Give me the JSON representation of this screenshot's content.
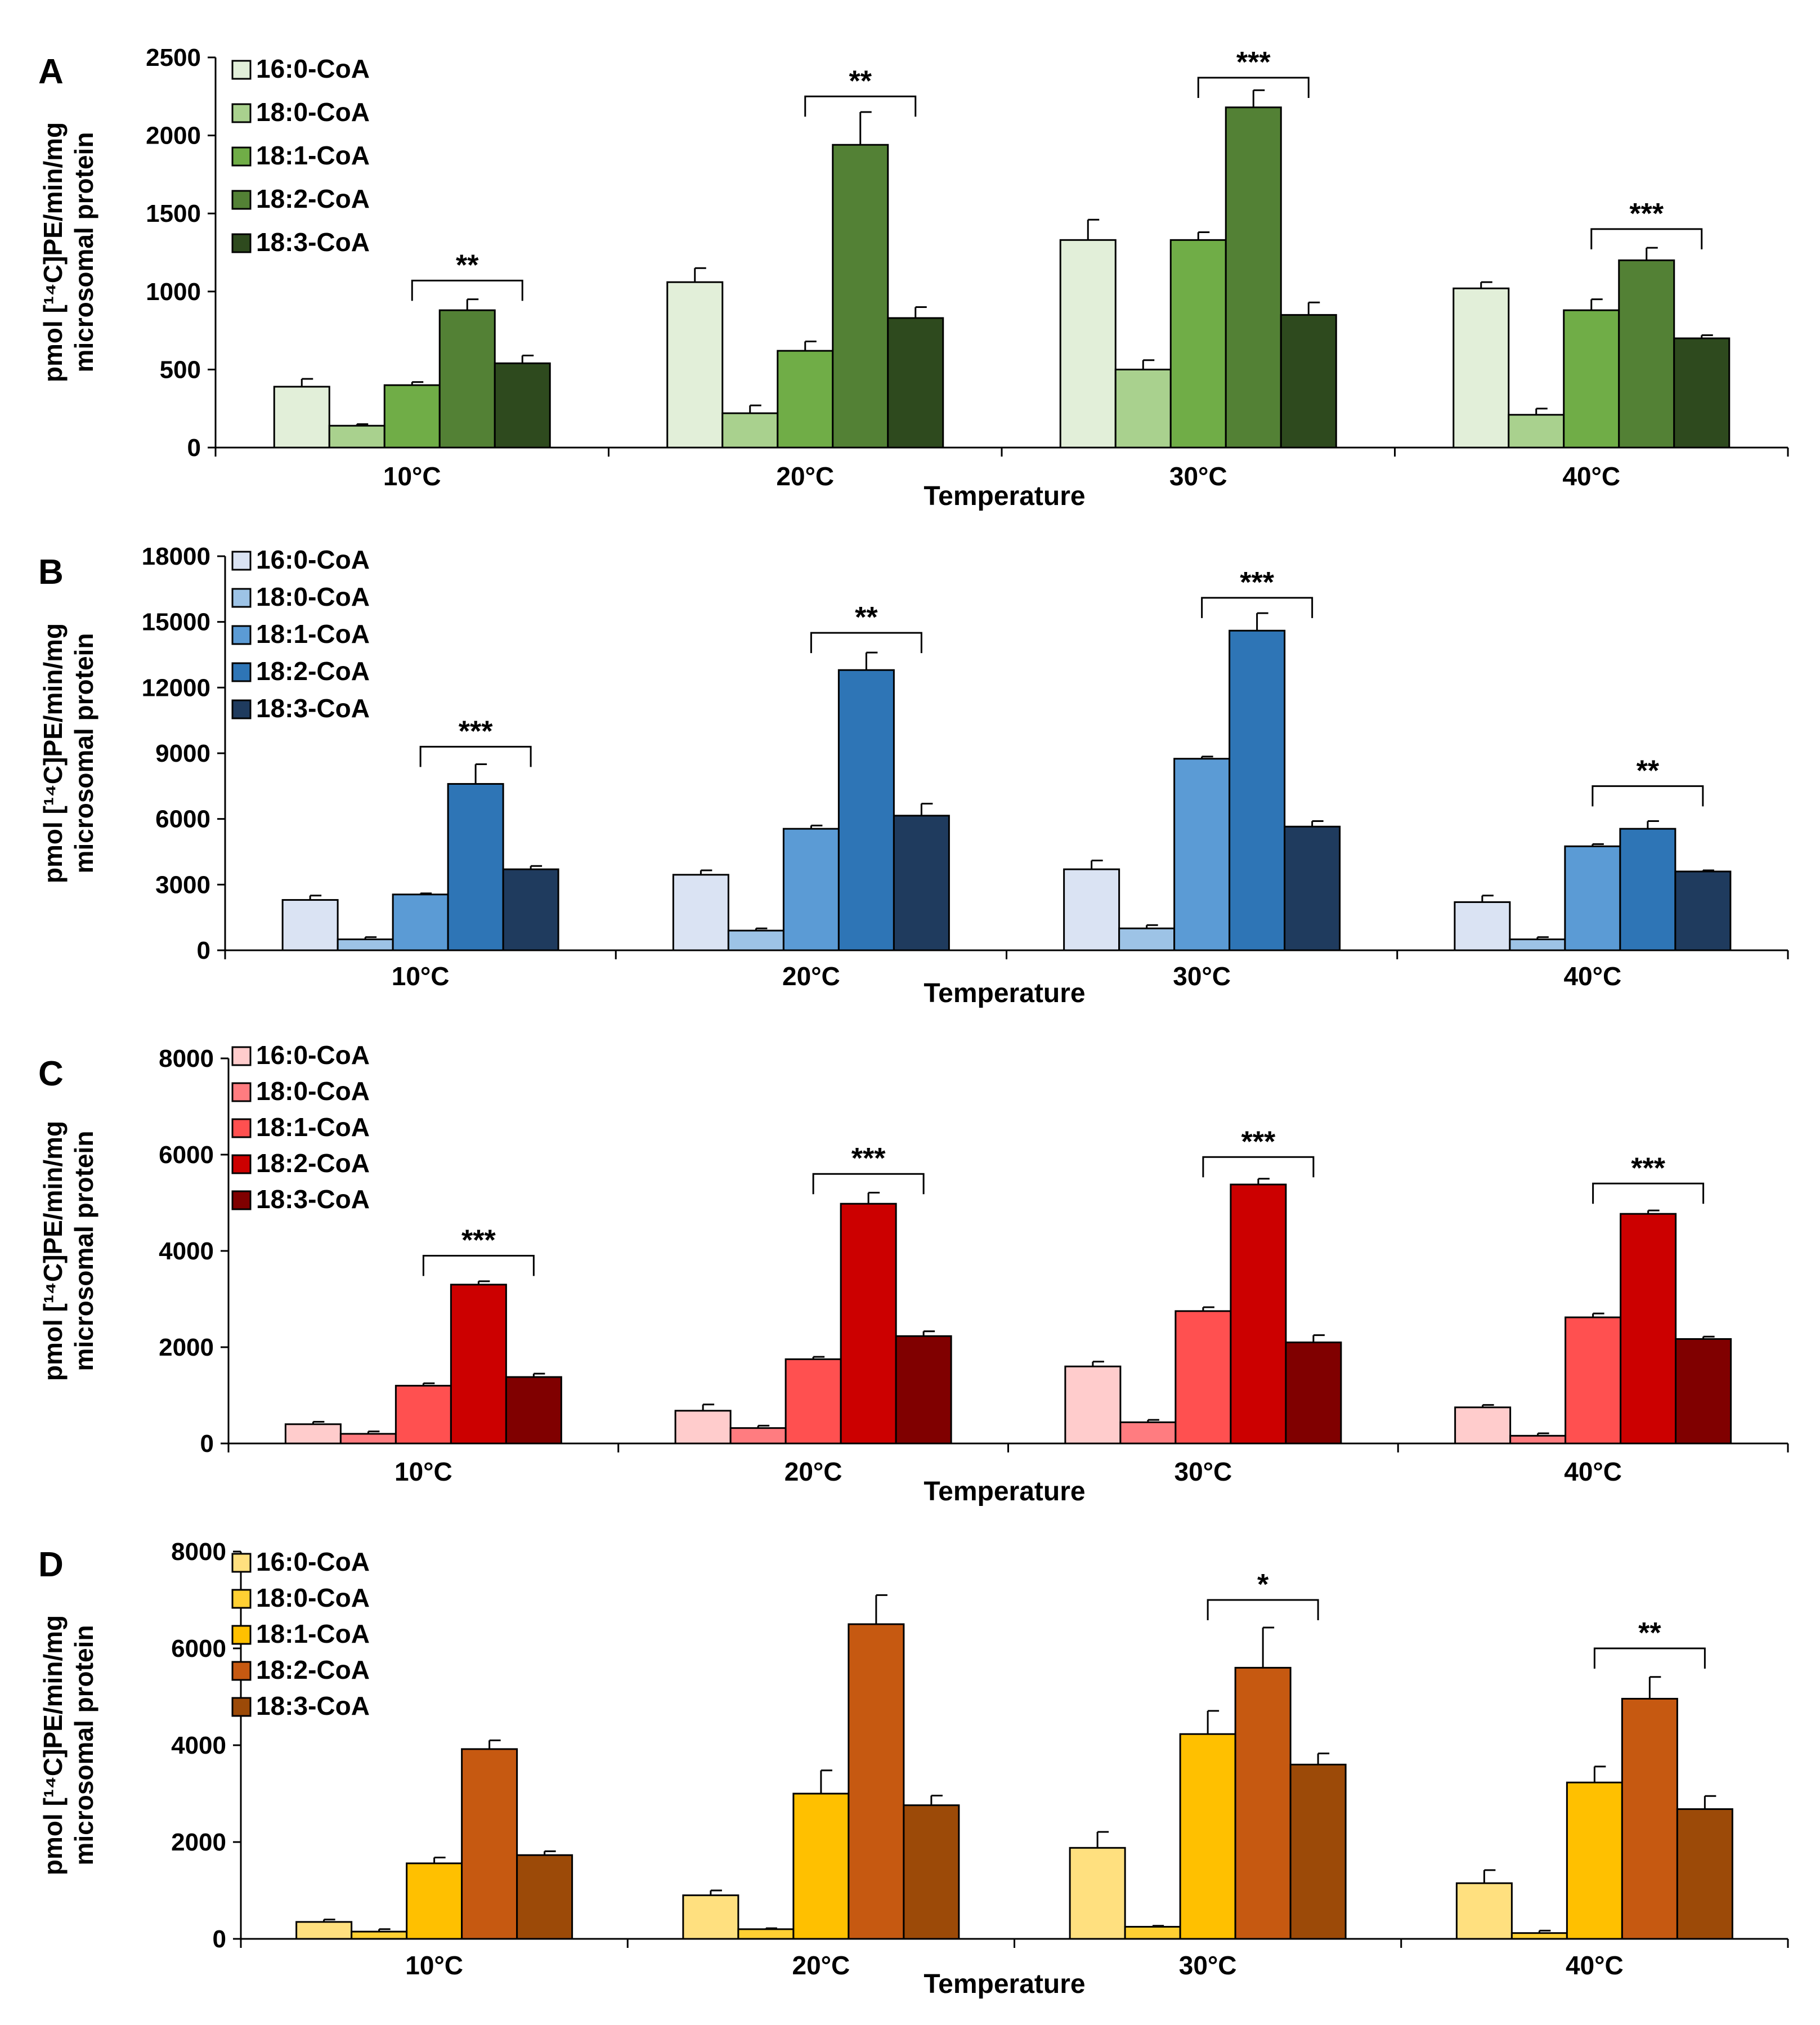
{
  "x_label": "Temperature",
  "y_label_line1": "pmol [¹⁴C]PE/min/mg",
  "y_label_line2": "microsomal protein",
  "series_names": [
    "16:0-CoA",
    "18:0-CoA",
    "18:1-CoA",
    "18:2-CoA",
    "18:3-CoA"
  ],
  "categories": [
    "10°C",
    "20°C",
    "30°C",
    "40°C"
  ],
  "chart_data": [
    {
      "type": "bar",
      "panel": "A",
      "title": "A",
      "xlabel": "Temperature",
      "ylabel": "pmol [14C]PE/min/mg microsomal protein",
      "categories": [
        "10°C",
        "20°C",
        "30°C",
        "40°C"
      ],
      "ylim": [
        0,
        2500
      ],
      "yticks": [
        0,
        500,
        1000,
        1500,
        2000,
        2500
      ],
      "ytick_labels": [
        "0",
        "500",
        "1000",
        "1500",
        "2000",
        "2500"
      ],
      "colors": [
        "#e2efd9",
        "#a9d18e",
        "#70ad47",
        "#538135",
        "#2e4a1e"
      ],
      "series": [
        {
          "name": "16:0-CoA",
          "values": [
            390,
            1060,
            1330,
            1020
          ],
          "errors": [
            50,
            90,
            130,
            40
          ]
        },
        {
          "name": "18:0-CoA",
          "values": [
            140,
            220,
            500,
            210
          ],
          "errors": [
            10,
            50,
            60,
            40
          ]
        },
        {
          "name": "18:1-CoA",
          "values": [
            400,
            620,
            1330,
            880
          ],
          "errors": [
            20,
            60,
            50,
            70
          ]
        },
        {
          "name": "18:2-CoA",
          "values": [
            880,
            1940,
            2180,
            1200
          ],
          "errors": [
            70,
            210,
            110,
            80
          ]
        },
        {
          "name": "18:3-CoA",
          "values": [
            540,
            830,
            850,
            700
          ],
          "errors": [
            50,
            70,
            80,
            20
          ]
        }
      ],
      "significance": [
        {
          "category": "10°C",
          "label": "**",
          "bracket_level": 1070
        },
        {
          "category": "20°C",
          "label": "**",
          "bracket_level": 2250
        },
        {
          "category": "30°C",
          "label": "***",
          "bracket_level": 2370
        },
        {
          "category": "40°C",
          "label": "***",
          "bracket_level": 1400
        }
      ]
    },
    {
      "type": "bar",
      "panel": "B",
      "title": "B",
      "xlabel": "Temperature",
      "ylabel": "pmol [14C]PE/min/mg microsomal protein",
      "categories": [
        "10°C",
        "20°C",
        "30°C",
        "40°C"
      ],
      "ylim": [
        0,
        18000
      ],
      "yticks": [
        0,
        3000,
        6000,
        9000,
        12000,
        15000,
        18000
      ],
      "ytick_labels": [
        "0",
        "3000",
        "6000",
        "9000",
        "12000",
        "15000",
        "18000"
      ],
      "colors": [
        "#dae3f3",
        "#9dc3e6",
        "#5b9bd5",
        "#2e75b6",
        "#1f3b5e"
      ],
      "series": [
        {
          "name": "16:0-CoA",
          "values": [
            2300,
            3450,
            3700,
            2200
          ],
          "errors": [
            200,
            200,
            400,
            300
          ]
        },
        {
          "name": "18:0-CoA",
          "values": [
            500,
            900,
            1000,
            500
          ],
          "errors": [
            100,
            100,
            150,
            100
          ]
        },
        {
          "name": "18:1-CoA",
          "values": [
            2550,
            5550,
            8750,
            4750
          ],
          "errors": [
            50,
            150,
            100,
            100
          ]
        },
        {
          "name": "18:2-CoA",
          "values": [
            7600,
            12800,
            14600,
            5550
          ],
          "errors": [
            900,
            800,
            800,
            350
          ]
        },
        {
          "name": "18:3-CoA",
          "values": [
            3700,
            6150,
            5650,
            3600
          ],
          "errors": [
            150,
            550,
            250,
            50
          ]
        }
      ],
      "significance": [
        {
          "category": "10°C",
          "label": "***",
          "bracket_level": 9300
        },
        {
          "category": "20°C",
          "label": "**",
          "bracket_level": 14500
        },
        {
          "category": "30°C",
          "label": "***",
          "bracket_level": 16100
        },
        {
          "category": "40°C",
          "label": "**",
          "bracket_level": 7500
        }
      ]
    },
    {
      "type": "bar",
      "panel": "C",
      "title": "C",
      "xlabel": "Temperature",
      "ylabel": "pmol [14C]PE/min/mg microsomal protein",
      "categories": [
        "10°C",
        "20°C",
        "30°C",
        "40°C"
      ],
      "ylim": [
        0,
        8000
      ],
      "yticks": [
        0,
        2000,
        4000,
        6000,
        8000
      ],
      "ytick_labels": [
        "0",
        "2000",
        "4000",
        "6000",
        "8000"
      ],
      "colors": [
        "#ffcccc",
        "#ff7c80",
        "#ff5050",
        "#cc0000",
        "#800000"
      ],
      "series": [
        {
          "name": "16:0-CoA",
          "values": [
            400,
            680,
            1600,
            750
          ],
          "errors": [
            50,
            130,
            100,
            50
          ]
        },
        {
          "name": "18:0-CoA",
          "values": [
            200,
            320,
            440,
            160
          ],
          "errors": [
            50,
            50,
            50,
            50
          ]
        },
        {
          "name": "18:1-CoA",
          "values": [
            1200,
            1750,
            2750,
            2620
          ],
          "errors": [
            50,
            50,
            80,
            80
          ]
        },
        {
          "name": "18:2-CoA",
          "values": [
            3300,
            4980,
            5380,
            4770
          ],
          "errors": [
            70,
            230,
            120,
            70
          ]
        },
        {
          "name": "18:3-CoA",
          "values": [
            1380,
            2230,
            2100,
            2170
          ],
          "errors": [
            70,
            100,
            150,
            50
          ]
        }
      ],
      "significance": [
        {
          "category": "10°C",
          "label": "***",
          "bracket_level": 3900
        },
        {
          "category": "20°C",
          "label": "***",
          "bracket_level": 5600
        },
        {
          "category": "30°C",
          "label": "***",
          "bracket_level": 5950
        },
        {
          "category": "40°C",
          "label": "***",
          "bracket_level": 5400
        }
      ]
    },
    {
      "type": "bar",
      "panel": "D",
      "title": "D",
      "xlabel": "Temperature",
      "ylabel": "pmol [14C]PE/min/mg microsomal protein",
      "categories": [
        "10°C",
        "20°C",
        "30°C",
        "40°C"
      ],
      "ylim": [
        0,
        8000
      ],
      "yticks": [
        0,
        2000,
        4000,
        6000,
        8000
      ],
      "ytick_labels": [
        "0",
        "2000",
        "4000",
        "6000",
        "8000"
      ],
      "colors": [
        "#ffe07f",
        "#ffd033",
        "#ffc000",
        "#c65911",
        "#9c4a08"
      ],
      "series": [
        {
          "name": "16:0-CoA",
          "values": [
            350,
            900,
            1880,
            1150
          ],
          "errors": [
            50,
            100,
            330,
            270
          ]
        },
        {
          "name": "18:0-CoA",
          "values": [
            150,
            200,
            250,
            120
          ],
          "errors": [
            50,
            20,
            20,
            50
          ]
        },
        {
          "name": "18:1-CoA",
          "values": [
            1560,
            3000,
            4230,
            3230
          ],
          "errors": [
            120,
            480,
            480,
            330
          ]
        },
        {
          "name": "18:2-CoA",
          "values": [
            3920,
            6500,
            5600,
            4960
          ],
          "errors": [
            180,
            600,
            830,
            450
          ]
        },
        {
          "name": "18:3-CoA",
          "values": [
            1730,
            2760,
            3600,
            2680
          ],
          "errors": [
            80,
            200,
            230,
            270
          ]
        }
      ],
      "significance": [
        {
          "category": "30°C",
          "label": "*",
          "bracket_level": 7000
        },
        {
          "category": "40°C",
          "label": "**",
          "bracket_level": 6000
        }
      ]
    }
  ]
}
